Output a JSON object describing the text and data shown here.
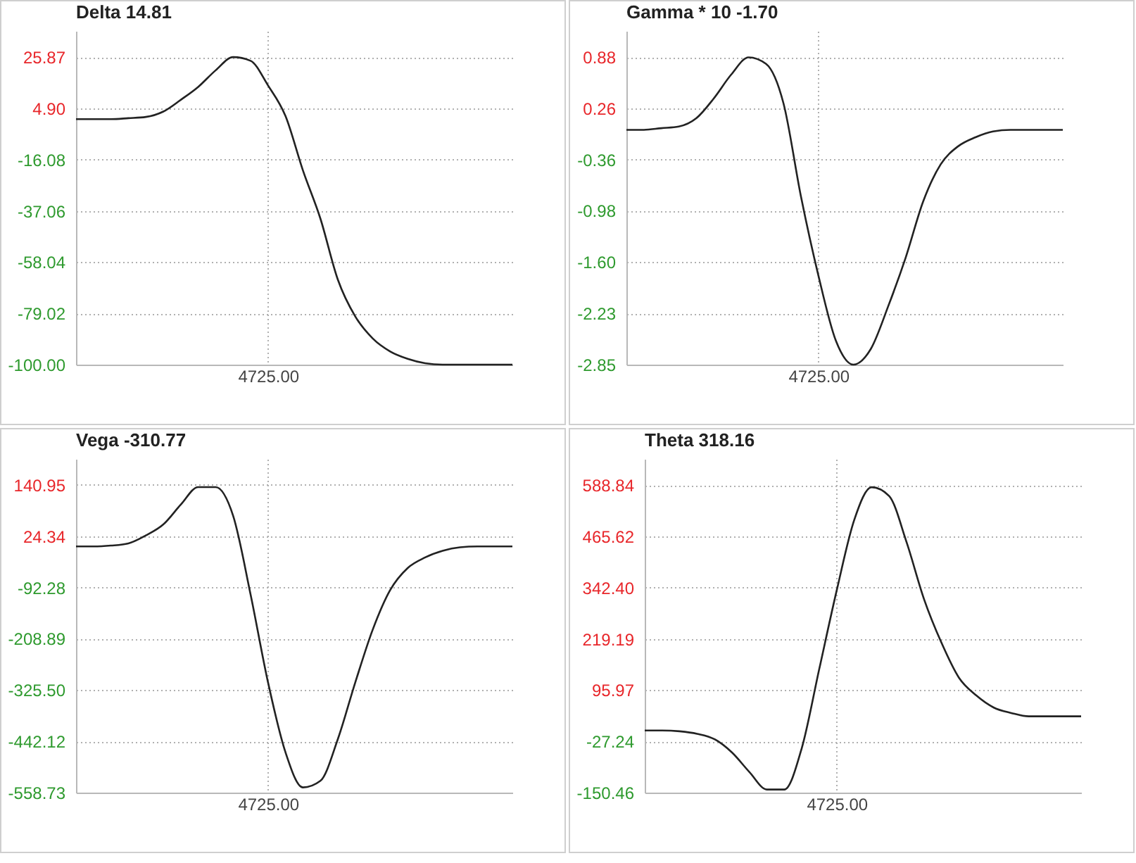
{
  "chart_data": [
    {
      "type": "line",
      "title": "Delta  14.81",
      "categories": [
        null,
        null,
        null,
        null,
        null,
        null,
        null,
        null,
        null,
        null,
        null,
        "4725.00",
        null,
        null,
        null,
        null,
        null,
        null,
        null,
        null,
        null,
        null,
        null,
        null,
        null,
        null
      ],
      "ylim": [
        -100,
        36.6
      ],
      "yticks": [
        25.87,
        {
          "value": 4.9,
          "label": "4.90"
        },
        -16.08,
        -37.06,
        -58.04,
        -79.02,
        {
          "value": -100,
          "label": "-100.00"
        }
      ],
      "grid": true,
      "series": [
        {
          "color": "#222222",
          "values": [
            0.5,
            0.5,
            0.5,
            0.9,
            1.4,
            3.6,
            8.4,
            13.7,
            20.5,
            25.9,
            24.4,
            14.3,
            1.8,
            -20.5,
            -40.2,
            -65.2,
            -80.3,
            -89.3,
            -94.6,
            -97.6,
            -99.4,
            -100,
            -100,
            -100,
            -100,
            -100
          ]
        }
      ]
    },
    {
      "type": "line",
      "title": "Gamma * 10  -1.70",
      "categories": [
        null,
        null,
        null,
        null,
        null,
        null,
        null,
        null,
        null,
        null,
        null,
        "4725.00",
        null,
        null,
        null,
        null,
        null,
        null,
        null,
        null,
        null,
        null,
        null,
        null,
        null,
        null
      ],
      "ylim": [
        -2.85,
        1.2
      ],
      "yticks": [
        0.88,
        0.26,
        -0.36,
        -0.98,
        {
          "value": -1.6,
          "label": "-1.60"
        },
        -2.23,
        -2.85
      ],
      "grid": true,
      "series": [
        {
          "color": "#222222",
          "values": [
            0,
            0,
            0.02,
            0.04,
            0.14,
            0.38,
            0.67,
            0.88,
            0.8,
            0.32,
            -0.81,
            -1.77,
            -2.56,
            -2.85,
            -2.66,
            -2.14,
            -1.55,
            -0.87,
            -0.42,
            -0.2,
            -0.09,
            -0.02,
            0,
            0,
            0,
            0
          ]
        }
      ]
    },
    {
      "type": "line",
      "title": "Vega  -310.77",
      "categories": [
        null,
        null,
        null,
        null,
        null,
        null,
        null,
        null,
        null,
        null,
        null,
        "4725.00",
        null,
        null,
        null,
        null,
        null,
        null,
        null,
        null,
        null,
        null,
        null,
        null,
        null,
        null
      ],
      "ylim": [
        -558.73,
        200
      ],
      "yticks": [
        140.95,
        24.34,
        -92.28,
        -208.89,
        {
          "value": -325.5,
          "label": "-325.50"
        },
        -442.12,
        -558.73
      ],
      "grid": true,
      "series": [
        {
          "color": "#222222",
          "values": [
            1,
            1,
            3,
            8,
            26,
            51,
            96,
            136,
            136,
            71,
            -108,
            -308,
            -467,
            -547,
            -532,
            -437,
            -308,
            -188,
            -98,
            -48,
            -24,
            -9,
            -1,
            1,
            1,
            1
          ]
        }
      ]
    },
    {
      "type": "line",
      "title": "Theta  318.16",
      "categories": [
        null,
        null,
        null,
        null,
        null,
        null,
        null,
        null,
        null,
        null,
        null,
        "4725.00",
        null,
        null,
        null,
        null,
        null,
        null,
        null,
        null,
        null,
        null,
        null,
        null,
        null,
        null
      ],
      "ylim": [
        -150.46,
        652
      ],
      "yticks": [
        588.84,
        465.62,
        {
          "value": 342.4,
          "label": "342.40"
        },
        219.19,
        95.97,
        -27.24,
        -150.46
      ],
      "grid": true,
      "series": [
        {
          "color": "#222222",
          "values": [
            -1,
            -1,
            -3,
            -9,
            -22,
            -54,
            -101,
            -143,
            -143,
            -43,
            147,
            336,
            505,
            584,
            563,
            452,
            315,
            210,
            126,
            83,
            54,
            41,
            33,
            33,
            33,
            33
          ]
        }
      ]
    }
  ]
}
